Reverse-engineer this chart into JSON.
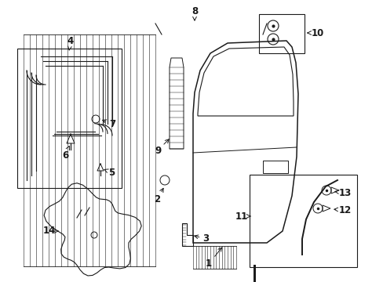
{
  "bg_color": "#ffffff",
  "fig_width": 4.89,
  "fig_height": 3.6,
  "dpi": 100,
  "line_color": "#1a1a1a",
  "label_fontsize": 8.5,
  "label_fontsize_sm": 7.5
}
